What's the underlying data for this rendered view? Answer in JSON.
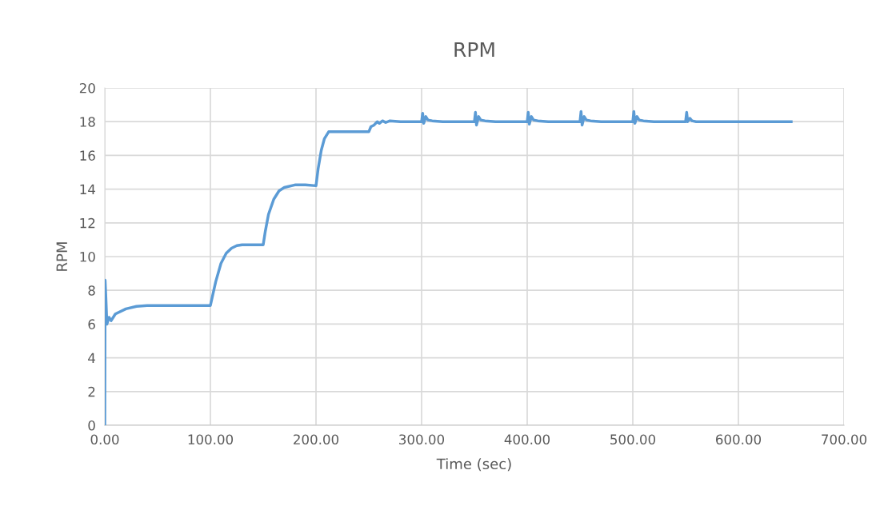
{
  "chart_data": {
    "type": "line",
    "title": "RPM",
    "xlabel": "Time (sec)",
    "ylabel": "RPM",
    "series": [
      {
        "color": "#5b9bd5",
        "x": [
          0,
          0.3,
          1,
          2,
          4,
          6,
          10,
          20,
          30,
          40,
          100,
          105,
          110,
          115,
          120,
          125,
          130,
          150,
          152,
          155,
          160,
          165,
          170,
          180,
          190,
          200,
          202,
          205,
          208,
          212,
          250,
          252,
          255,
          258,
          260,
          263,
          266,
          270,
          280,
          300,
          301,
          302,
          304,
          306,
          310,
          320,
          350,
          351,
          352,
          354,
          356,
          360,
          370,
          400,
          401,
          402,
          404,
          406,
          410,
          420,
          450,
          451,
          452,
          454,
          456,
          460,
          470,
          500,
          501,
          502,
          504,
          506,
          510,
          520,
          550,
          551,
          552,
          554,
          556,
          560,
          570,
          650
        ],
        "values": [
          0,
          8.6,
          7.6,
          6.0,
          6.4,
          6.2,
          6.6,
          6.9,
          7.05,
          7.1,
          7.1,
          8.5,
          9.6,
          10.2,
          10.5,
          10.65,
          10.7,
          10.7,
          11.5,
          12.5,
          13.4,
          13.9,
          14.1,
          14.25,
          14.25,
          14.2,
          15.2,
          16.3,
          17.0,
          17.4,
          17.4,
          17.7,
          17.8,
          18.0,
          17.9,
          18.05,
          17.95,
          18.05,
          18.0,
          18.0,
          18.5,
          17.9,
          18.3,
          18.1,
          18.05,
          18.0,
          18.0,
          18.55,
          17.8,
          18.3,
          18.1,
          18.05,
          18.0,
          18.0,
          18.55,
          17.85,
          18.3,
          18.1,
          18.05,
          18.0,
          18.0,
          18.6,
          17.8,
          18.3,
          18.1,
          18.05,
          18.0,
          18.0,
          18.6,
          17.9,
          18.3,
          18.1,
          18.05,
          18.0,
          18.0,
          18.55,
          18.0,
          18.2,
          18.05,
          18.0,
          18.0,
          18.0
        ]
      }
    ],
    "xlim": [
      0,
      700
    ],
    "xticks": [
      {
        "value": 0,
        "label": "0.00"
      },
      {
        "value": 100,
        "label": "100.00"
      },
      {
        "value": 200,
        "label": "200.00"
      },
      {
        "value": 300,
        "label": "300.00"
      },
      {
        "value": 400,
        "label": "400.00"
      },
      {
        "value": 500,
        "label": "500.00"
      },
      {
        "value": 600,
        "label": "600.00"
      },
      {
        "value": 700,
        "label": "700.00"
      }
    ],
    "ylim": [
      0,
      20
    ],
    "yticks": [
      0,
      2,
      4,
      6,
      8,
      10,
      12,
      14,
      16,
      18,
      20
    ],
    "grid": true,
    "marker": "none",
    "line_style": "solid"
  }
}
